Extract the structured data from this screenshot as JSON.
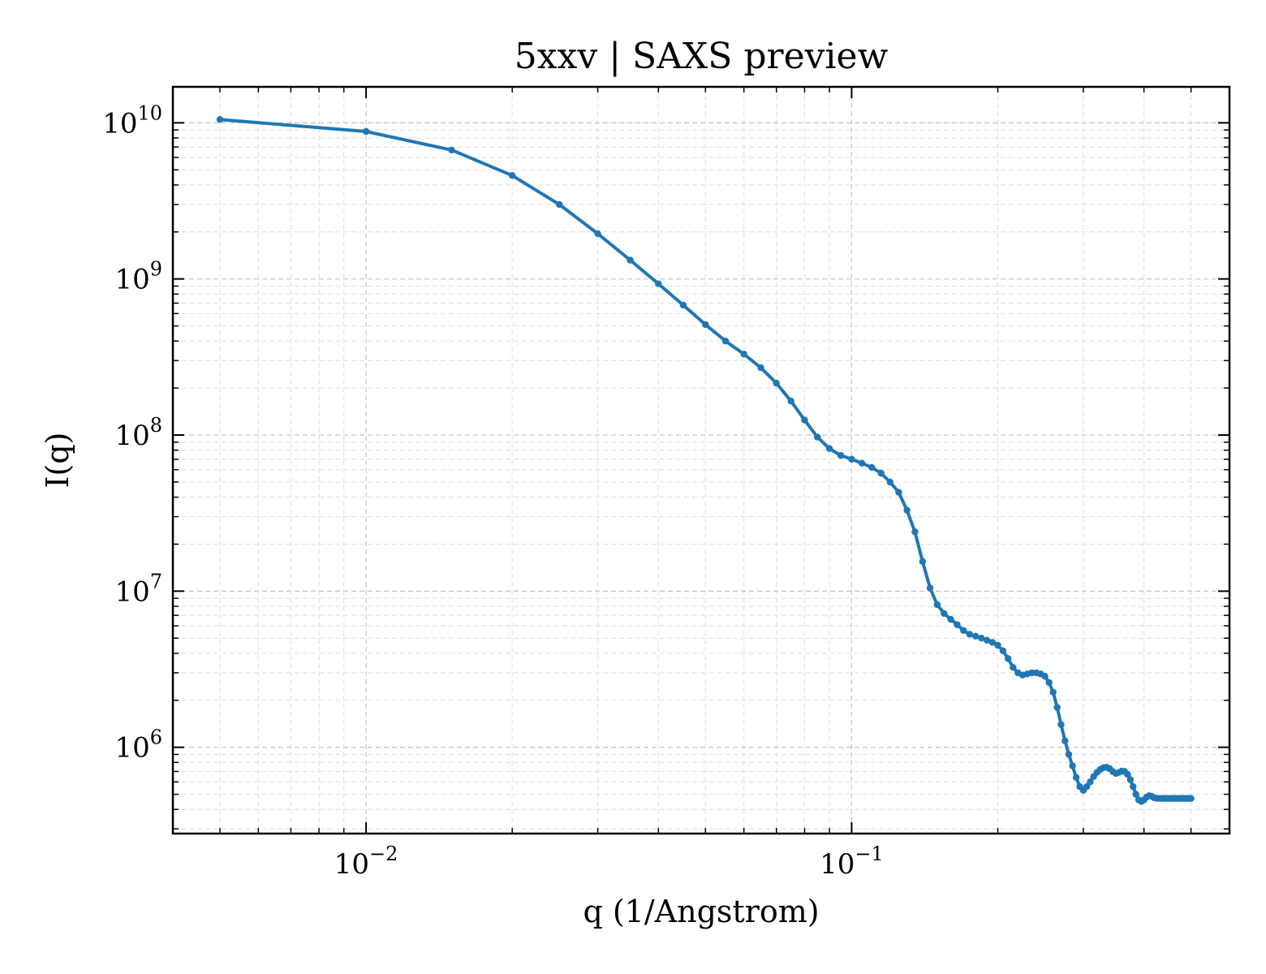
{
  "chart_data": {
    "type": "line",
    "title": "5xxv | SAXS preview",
    "xlabel": "q (1/Angstrom)",
    "ylabel": "I(q)",
    "xscale": "log",
    "yscale": "log",
    "xlim": [
      0.004,
      0.6
    ],
    "ylim": [
      280000,
      17000000000
    ],
    "grid": "on",
    "x_ticks": [
      {
        "base": "10",
        "exp": "−2",
        "value": 0.01
      },
      {
        "base": "10",
        "exp": "−1",
        "value": 0.1
      }
    ],
    "y_ticks": [
      {
        "base": "10",
        "exp": "6",
        "value": 1000000
      },
      {
        "base": "10",
        "exp": "7",
        "value": 10000000
      },
      {
        "base": "10",
        "exp": "8",
        "value": 100000000
      },
      {
        "base": "10",
        "exp": "9",
        "value": 1000000000
      },
      {
        "base": "10",
        "exp": "10",
        "value": 10000000000
      }
    ],
    "series": [
      {
        "color": "#1f77b4",
        "x": [
          0.005,
          0.01,
          0.015,
          0.02,
          0.025,
          0.03,
          0.035,
          0.04,
          0.045,
          0.05,
          0.055,
          0.06,
          0.065,
          0.07,
          0.075,
          0.08,
          0.085,
          0.09,
          0.095,
          0.1,
          0.105,
          0.11,
          0.115,
          0.12,
          0.125,
          0.13,
          0.135,
          0.14,
          0.145,
          0.15,
          0.155,
          0.16,
          0.165,
          0.17,
          0.175,
          0.18,
          0.185,
          0.19,
          0.195,
          0.2,
          0.205,
          0.21,
          0.215,
          0.22,
          0.225,
          0.23,
          0.235,
          0.24,
          0.245,
          0.25,
          0.255,
          0.26,
          0.265,
          0.27,
          0.275,
          0.28,
          0.285,
          0.29,
          0.295,
          0.3,
          0.305,
          0.31,
          0.315,
          0.32,
          0.325,
          0.33,
          0.335,
          0.34,
          0.345,
          0.35,
          0.355,
          0.36,
          0.365,
          0.37,
          0.375,
          0.38,
          0.385,
          0.39,
          0.395,
          0.4,
          0.405,
          0.41,
          0.415,
          0.42,
          0.425,
          0.43,
          0.435,
          0.44,
          0.445,
          0.45,
          0.455,
          0.46,
          0.465,
          0.47,
          0.475,
          0.48,
          0.485,
          0.49,
          0.495,
          0.5
        ],
        "y": [
          10500000000,
          8800000000,
          6700000000,
          4600000000,
          3000000000,
          1950000000,
          1320000000,
          930000000,
          680000000,
          510000000,
          400000000,
          330000000,
          270000000,
          215000000,
          165000000,
          125000000,
          97000000,
          82000000,
          74000000,
          70000000,
          66000000,
          62000000,
          57000000,
          50000000,
          43000000,
          33000000,
          24000000,
          15500000,
          10500000,
          8200000,
          7200000,
          6600000,
          6100000,
          5600000,
          5300000,
          5150000,
          5000000,
          4850000,
          4700000,
          4500000,
          4150000,
          3700000,
          3250000,
          3000000,
          2900000,
          2950000,
          3000000,
          3000000,
          2950000,
          2850000,
          2600000,
          2250000,
          1800000,
          1400000,
          1100000,
          900000,
          760000,
          640000,
          560000,
          530000,
          560000,
          600000,
          650000,
          690000,
          720000,
          740000,
          745000,
          730000,
          700000,
          680000,
          690000,
          705000,
          700000,
          670000,
          620000,
          560000,
          500000,
          460000,
          450000,
          460000,
          480000,
          490000,
          485000,
          475000,
          470000,
          470000,
          470000,
          470000,
          470000,
          470000,
          470000,
          470000,
          470000,
          470000,
          470000,
          470000,
          470000,
          470000,
          470000,
          470000
        ]
      }
    ]
  }
}
